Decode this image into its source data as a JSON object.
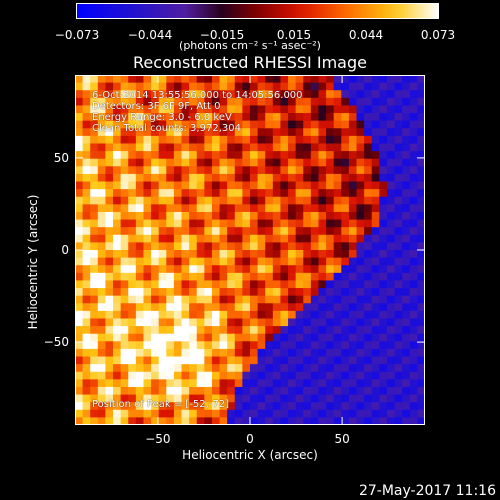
{
  "chart_data": {
    "type": "heatmap",
    "title": "Reconstructed RHESSI Image",
    "xlabel": "Heliocentric X (arcsec)",
    "ylabel": "Heliocentric Y (arcsec)",
    "xlim": [
      -95,
      95
    ],
    "ylim": [
      -95,
      95
    ],
    "x_ticks": [
      -50,
      0,
      50
    ],
    "y_ticks": [
      -50,
      0,
      50
    ],
    "colorbar": {
      "label": "(photons cm⁻² s⁻¹ asec⁻²)",
      "range": [
        -0.073,
        0.073
      ],
      "ticks": [
        "−0.073",
        "−0.044",
        "−0.015",
        "0.015",
        "0.044",
        "0.073"
      ]
    },
    "annotations": [
      "6-Oct-2014 13:55:56.000 to 14:05:56.000",
      "Detectors: 3F 6F 9F, Att 0",
      "Energy Range: 3.0 - 6.0 keV",
      "Clean   Total counts: 3,972,304"
    ],
    "peak_label": "Position of Peak = [-52,-72]",
    "peak_position": [
      -52,
      -72
    ]
  },
  "footer": {
    "timestamp": "27-May-2017 11:16"
  },
  "colors": {
    "background": "#000000",
    "text": "#ffffff"
  }
}
